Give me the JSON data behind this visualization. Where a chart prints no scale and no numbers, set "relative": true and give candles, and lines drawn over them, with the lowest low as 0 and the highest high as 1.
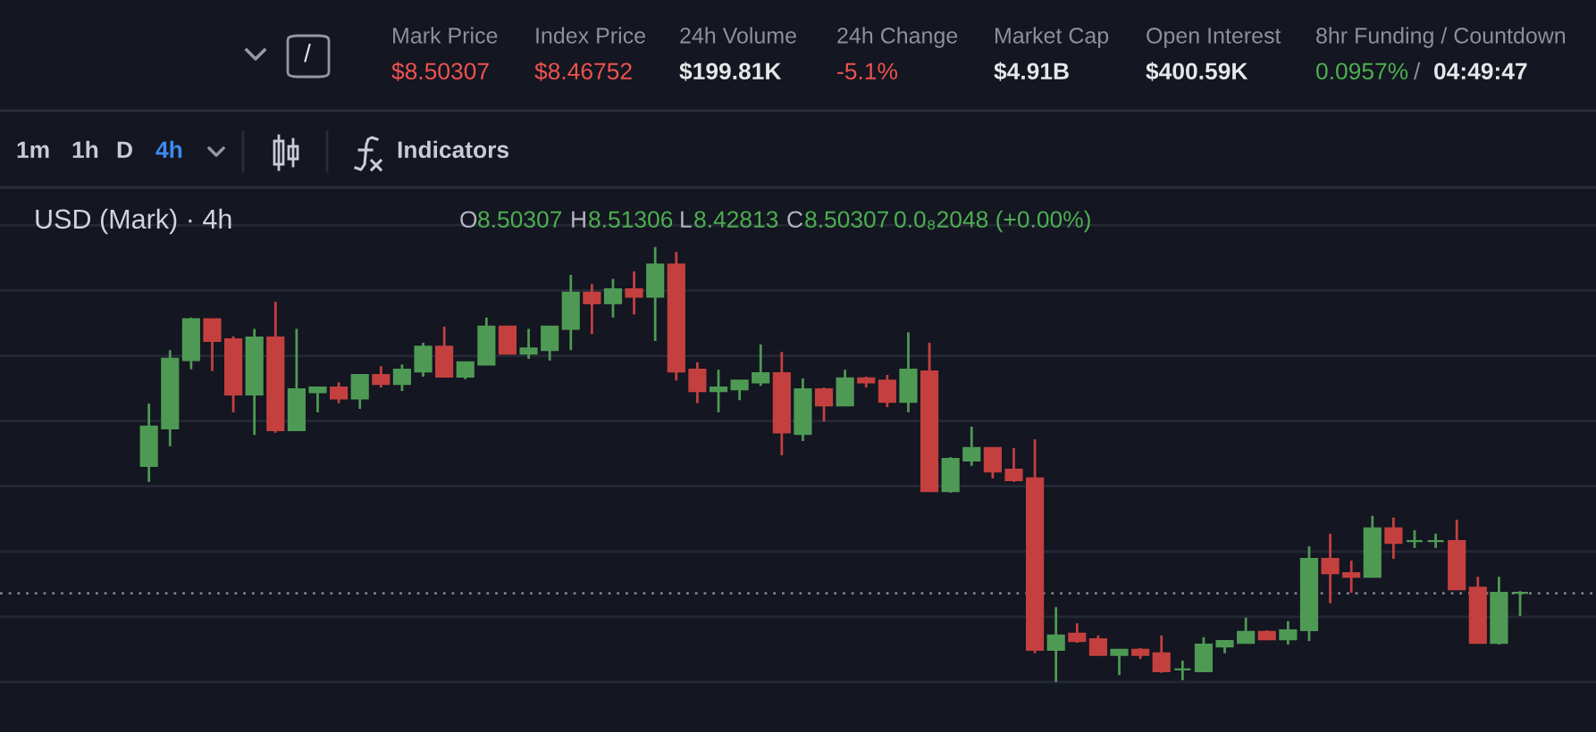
{
  "chart_data": {
    "type": "candlestick",
    "title": "USD (Mark) · 4h",
    "annotations": [
      "Mark Price",
      "$8.50307",
      "Index Price",
      "$8.46752",
      "24h Volume",
      "$199.81K",
      "24h Change",
      "-5.1%",
      "Market Cap",
      "$4.91B",
      "Open Interest",
      "$400.59K",
      "8hr Funding / Countdown",
      "0.0957%",
      "/",
      "04:49:47",
      "/",
      "1m",
      "1h",
      "D",
      "4h",
      "Indicators",
      "O",
      "8.50307",
      "H",
      "8.51306",
      "L",
      "8.42813",
      "C",
      "8.50307",
      "0.0₈2048 (+0.00%)"
    ],
    "relative": true,
    "grid": true,
    "categories": [
      null,
      null,
      null,
      null,
      null,
      null,
      null,
      null,
      null,
      null,
      null,
      null,
      null,
      null,
      null,
      null,
      null,
      null,
      null,
      null,
      null,
      null,
      null,
      null,
      null,
      null,
      null,
      null,
      null,
      null,
      null,
      null,
      null,
      null,
      null,
      null,
      null,
      null,
      null,
      null,
      null,
      null,
      null,
      null,
      null,
      null,
      null,
      null,
      null,
      null,
      null,
      null,
      null,
      null,
      null,
      null,
      null,
      null,
      null,
      null,
      null,
      null,
      null,
      null,
      null,
      null
    ],
    "ohlc": [
      [
        0.497,
        0.64,
        0.46,
        0.587
      ],
      [
        0.583,
        0.763,
        0.542,
        0.743
      ],
      [
        0.74,
        0.838,
        0.719,
        0.834
      ],
      [
        0.834,
        0.834,
        0.715,
        0.784
      ],
      [
        0.788,
        0.795,
        0.62,
        0.661
      ],
      [
        0.661,
        0.812,
        0.568,
        0.792
      ],
      [
        0.792,
        0.874,
        0.573,
        0.579
      ],
      [
        0.579,
        0.812,
        0.579,
        0.673
      ],
      [
        0.666,
        0.677,
        0.62,
        0.677
      ],
      [
        0.677,
        0.689,
        0.641,
        0.652
      ],
      [
        0.652,
        0.706,
        0.628,
        0.706
      ],
      [
        0.706,
        0.726,
        0.677,
        0.685
      ],
      [
        0.685,
        0.73,
        0.669,
        0.718
      ],
      [
        0.714,
        0.78,
        0.702,
        0.771
      ],
      [
        0.771,
        0.817,
        0.702,
        0.702
      ],
      [
        0.702,
        0.735,
        0.696,
        0.735
      ],
      [
        0.73,
        0.838,
        0.73,
        0.817
      ],
      [
        0.817,
        0.817,
        0.755,
        0.755
      ],
      [
        0.755,
        0.812,
        0.743,
        0.767
      ],
      [
        0.763,
        0.817,
        0.739,
        0.817
      ],
      [
        0.812,
        0.936,
        0.763,
        0.895
      ],
      [
        0.895,
        0.915,
        0.8,
        0.871
      ],
      [
        0.871,
        0.927,
        0.838,
        0.903
      ],
      [
        0.903,
        0.944,
        0.845,
        0.886
      ],
      [
        0.886,
        1,
        0.784,
        0.96
      ],
      [
        0.96,
        0.989,
        0.693,
        0.714
      ],
      [
        0.718,
        0.735,
        0.641,
        0.669
      ],
      [
        0.669,
        0.718,
        0.62,
        0.677
      ],
      [
        0.673,
        0.693,
        0.648,
        0.693
      ],
      [
        0.689,
        0.776,
        0.681,
        0.71
      ],
      [
        0.71,
        0.759,
        0.521,
        0.574
      ],
      [
        0.57,
        0.698,
        0.554,
        0.673
      ],
      [
        0.673,
        0.677,
        0.599,
        0.636
      ],
      [
        0.636,
        0.718,
        0.636,
        0.698
      ],
      [
        0.698,
        0.702,
        0.677,
        0.689
      ],
      [
        0.693,
        0.706,
        0.632,
        0.644
      ],
      [
        0.644,
        0.804,
        0.62,
        0.718
      ],
      [
        0.714,
        0.78,
        0.439,
        0.439
      ],
      [
        0.439,
        0.517,
        0.435,
        0.513
      ],
      [
        0.509,
        0.587,
        0.497,
        0.538
      ],
      [
        0.538,
        0.538,
        0.468,
        0.484
      ],
      [
        0.488,
        0.538,
        0.46,
        0.464
      ],
      [
        0.468,
        0.558,
        0.066,
        0.074
      ],
      [
        0.074,
        0.172,
        0,
        0.107
      ],
      [
        0.111,
        0.135,
        0.09,
        0.094
      ],
      [
        0.098,
        0.107,
        0.062,
        0.062
      ],
      [
        0.062,
        0.074,
        0.016,
        0.074
      ],
      [
        0.074,
        0.078,
        0.053,
        0.062
      ],
      [
        0.066,
        0.107,
        0.021,
        0.025
      ],
      [
        0.029,
        0.049,
        0.004,
        0.029
      ],
      [
        0.025,
        0.103,
        0.025,
        0.086
      ],
      [
        0.082,
        0.094,
        0.066,
        0.094
      ],
      [
        0.09,
        0.148,
        0.09,
        0.115
      ],
      [
        0.115,
        0.119,
        0.096,
        0.098
      ],
      [
        0.098,
        0.14,
        0.086,
        0.119
      ],
      [
        0.119,
        0.312,
        0.094,
        0.283
      ],
      [
        0.283,
        0.341,
        0.181,
        0.25
      ],
      [
        0.25,
        0.279,
        0.205,
        0.242
      ],
      [
        0.242,
        0.382,
        0.242,
        0.353
      ],
      [
        0.353,
        0.378,
        0.283,
        0.32
      ],
      [
        0.324,
        0.349,
        0.308,
        0.324
      ],
      [
        0.324,
        0.341,
        0.308,
        0.324
      ],
      [
        0.324,
        0.373,
        0.213,
        0.213
      ],
      [
        0.217,
        0.242,
        0.09,
        0.09
      ],
      [
        0.09,
        0.242,
        0.086,
        0.205
      ],
      [
        0.205,
        0.209,
        0.152,
        0.205
      ]
    ],
    "colors": [
      "#4e9a55",
      "#4e9a55",
      "#4e9a55",
      "#c4403f",
      "#c4403f",
      "#4e9a55",
      "#c4403f",
      "#4e9a55",
      "#4e9a55",
      "#c4403f",
      "#4e9a55",
      "#c4403f",
      "#4e9a55",
      "#4e9a55",
      "#c4403f",
      "#4e9a55",
      "#4e9a55",
      "#c4403f",
      "#4e9a55",
      "#4e9a55",
      "#4e9a55",
      "#c4403f",
      "#4e9a55",
      "#c4403f",
      "#4e9a55",
      "#c4403f",
      "#c4403f",
      "#4e9a55",
      "#4e9a55",
      "#4e9a55",
      "#c4403f",
      "#4e9a55",
      "#c4403f",
      "#4e9a55",
      "#c4403f",
      "#c4403f",
      "#4e9a55",
      "#c4403f",
      "#4e9a55",
      "#4e9a55",
      "#c4403f",
      "#c4403f",
      "#c4403f",
      "#4e9a55",
      "#c4403f",
      "#c4403f",
      "#4e9a55",
      "#c4403f",
      "#c4403f",
      "#4e9a55",
      "#4e9a55",
      "#4e9a55",
      "#4e9a55",
      "#c4403f",
      "#4e9a55",
      "#4e9a55",
      "#c4403f",
      "#c4403f",
      "#4e9a55",
      "#c4403f",
      "#4e9a55",
      "#4e9a55",
      "#c4403f",
      "#c4403f",
      "#4e9a55",
      "#4e9a55"
    ],
    "ref_lines": [
      {
        "axis": "y",
        "value": 0.204,
        "color": "#7d808a",
        "line_style": "dotted"
      }
    ]
  }
}
